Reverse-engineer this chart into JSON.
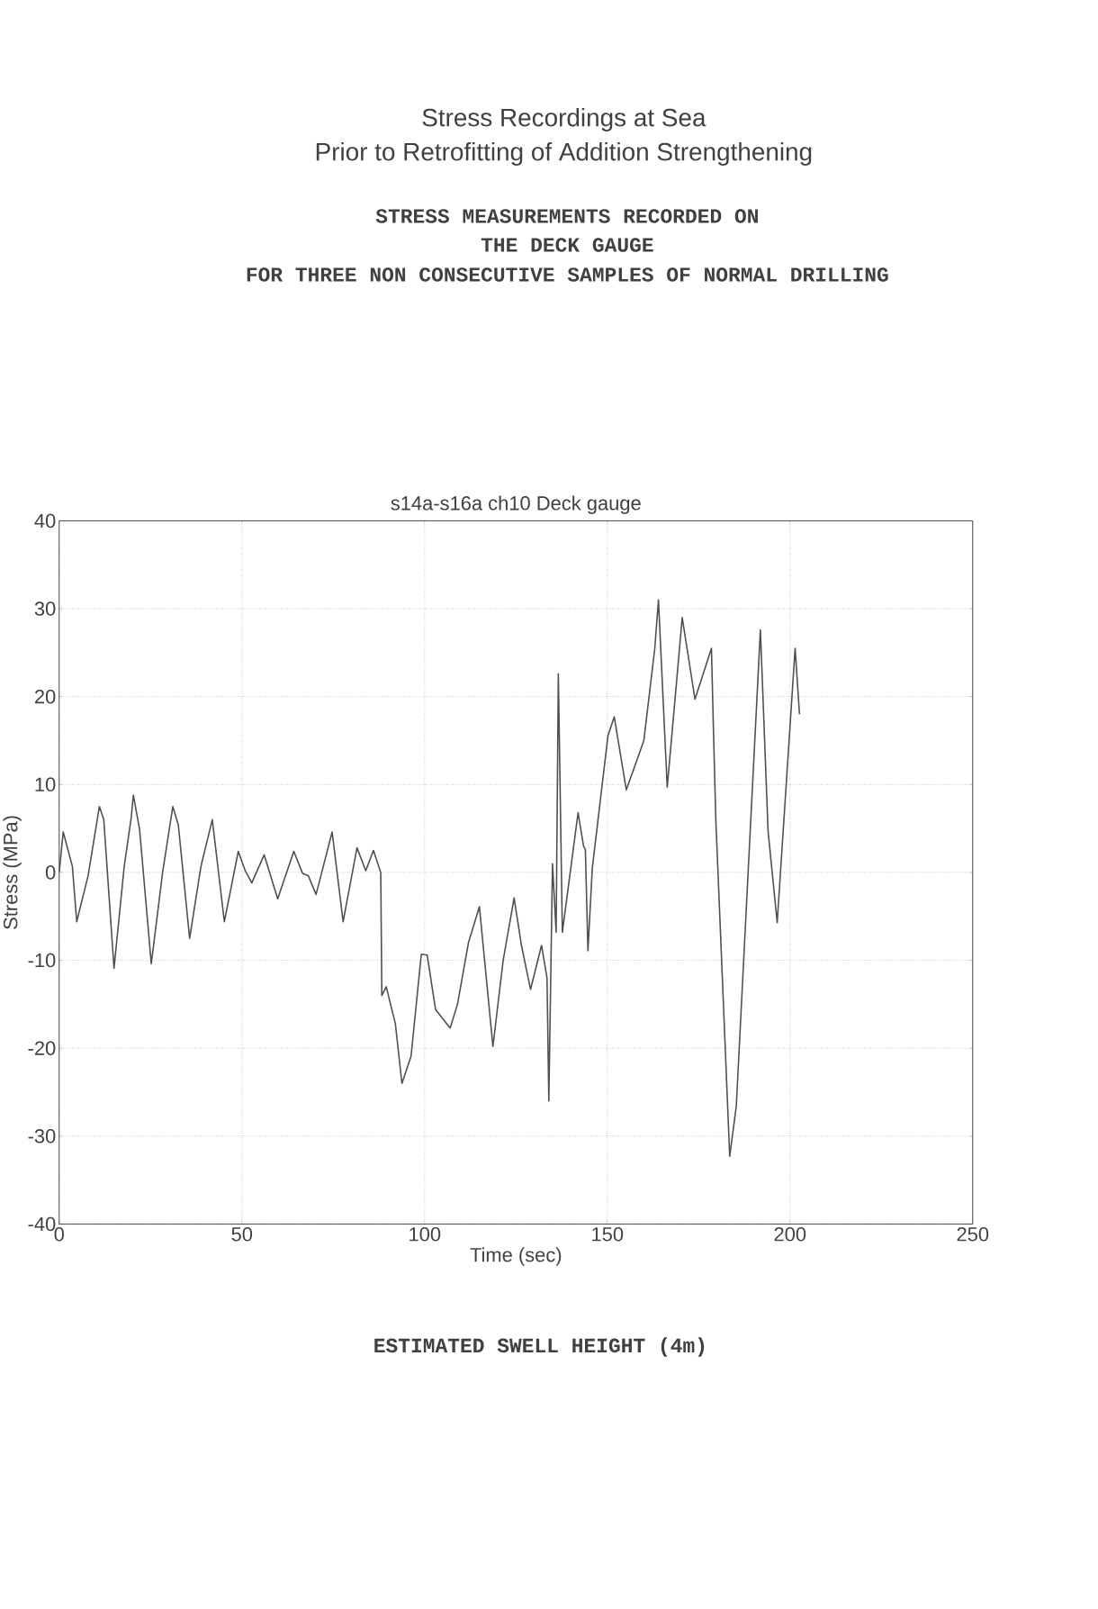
{
  "chart_data": {
    "type": "line",
    "title": "s14a-s16a   ch10  Deck gauge",
    "xlabel": "Time (sec)",
    "ylabel": "Stress (MPa)",
    "annotations": [
      "Stress Recordings at Sea",
      "Prior to Retrofitting of Addition Strengthening",
      "STRESS MEASUREMENTS RECORDED ON",
      "THE DECK GAUGE",
      "FOR THREE NON CONSECUTIVE SAMPLES OF NORMAL DRILLING",
      "ESTIMATED SWELL HEIGHT (4m)"
    ],
    "xlim": [
      0,
      250
    ],
    "xticks": [
      0,
      50,
      100,
      150,
      200,
      250
    ],
    "ylim": [
      -40,
      40
    ],
    "yticks": [
      -40,
      -30,
      -20,
      -10,
      0,
      10,
      20,
      30,
      40
    ],
    "grid": true,
    "marker": "none",
    "line_style": "solid",
    "series": [
      {
        "color": "#505050",
        "x": [
          0,
          1.1,
          3.6,
          4.8,
          7.9,
          11,
          12.2,
          15,
          17.8,
          19.7,
          20.3,
          22,
          25.2,
          28.3,
          31.1,
          32.6,
          35.7,
          38.8,
          41.9,
          45.2,
          49,
          50.9,
          52.7,
          56.1,
          59.8,
          64.2,
          66.6,
          68.2,
          70.3,
          74.7,
          77.7,
          81.5,
          83.9,
          86,
          88,
          88.3,
          89.5,
          92,
          93.8,
          96.3,
          99.1,
          100.7,
          103,
          107,
          109,
          112,
          115,
          118.7,
          121.5,
          124.5,
          126.5,
          129,
          132,
          133.5,
          134,
          135,
          136,
          136.6,
          137.7,
          142,
          143.5,
          144,
          144.7,
          145.9,
          150.2,
          151.9,
          155.2,
          158.3,
          160,
          163,
          164,
          166.4,
          168.6,
          170.5,
          174,
          178.5,
          179,
          179.7,
          183.5,
          185.3,
          191.9,
          194,
          196.5,
          201.4,
          202.6
        ],
        "values": [
          0,
          4.6,
          0.7,
          -5.6,
          -0.4,
          7.5,
          6,
          -10.9,
          0.7,
          6.2,
          8.8,
          4.9,
          -10.4,
          0,
          7.5,
          5.4,
          -7.5,
          0.7,
          6,
          -5.6,
          2.4,
          0.2,
          -1.2,
          2,
          -3,
          2.4,
          -0.1,
          -0.4,
          -2.5,
          4.6,
          -5.6,
          2.8,
          0.2,
          2.5,
          0,
          -14,
          -13,
          -17.2,
          -24,
          -20.9,
          -9.3,
          -9.4,
          -15.6,
          -17.7,
          -15,
          -8,
          -3.9,
          -19.8,
          -10,
          -2.9,
          -8.3,
          -13.3,
          -8.3,
          -12,
          -26,
          1,
          -6.8,
          22.6,
          -6.8,
          6.8,
          3,
          2.6,
          -8.9,
          0.5,
          15.6,
          17.7,
          9.4,
          13,
          15,
          25.5,
          31,
          9.7,
          20,
          29,
          19.7,
          25.5,
          17,
          6,
          -32.3,
          -26.6,
          27.6,
          4.7,
          -5.7,
          25.5,
          18
        ]
      }
    ]
  }
}
